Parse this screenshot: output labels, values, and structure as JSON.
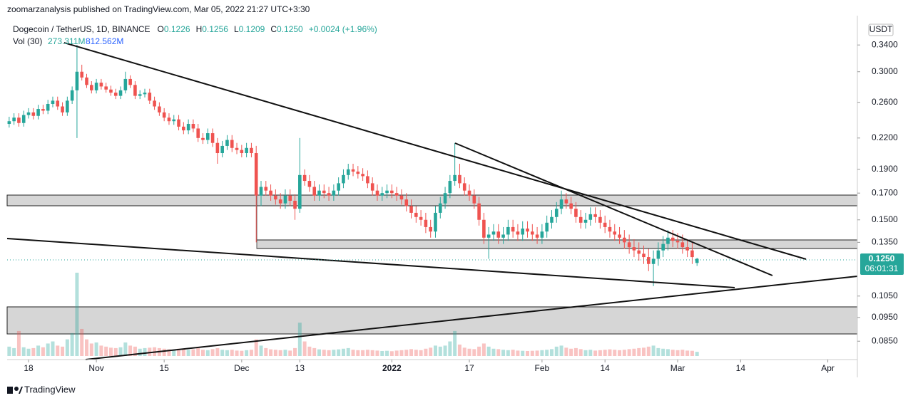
{
  "chart_data": {
    "type": "candlestick",
    "published": "zoomarzanalysis published on TradingView.com, Mar 05, 2022 21:27 UTC+3:30",
    "symbol": "Dogecoin / TetherUS, 1D, BINANCE",
    "ohlc_legend": [
      {
        "key": "O",
        "value": "0.1226"
      },
      {
        "key": "H",
        "value": "0.1256"
      },
      {
        "key": "L",
        "value": "0.1209"
      },
      {
        "key": "C",
        "value": "0.1250"
      }
    ],
    "change": "+0.0024 (+1.96%)",
    "volume_legend": {
      "name": "Vol (30)",
      "volume": "273.311M",
      "average": "812.562M"
    },
    "currency": "USDT",
    "last_price": "0.1250",
    "countdown": "06:01:31",
    "brand": "TradingView",
    "up_color": "#26a69a",
    "down_color": "#ef5350",
    "log_scale": true,
    "ylim": [
      0.078,
      0.39
    ],
    "yticks": [
      {
        "value": 0.34,
        "label": "0.3400"
      },
      {
        "value": 0.3,
        "label": "0.3000"
      },
      {
        "value": 0.26,
        "label": "0.2600"
      },
      {
        "value": 0.22,
        "label": "0.2200"
      },
      {
        "value": 0.19,
        "label": "0.1900"
      },
      {
        "value": 0.17,
        "label": "0.1700"
      },
      {
        "value": 0.15,
        "label": "0.1500"
      },
      {
        "value": 0.135,
        "label": "0.1350"
      },
      {
        "value": 0.105,
        "label": "0.1050"
      },
      {
        "value": 0.095,
        "label": "0.0950"
      },
      {
        "value": 0.085,
        "label": "0.0850"
      }
    ],
    "xlim": [
      -0.42,
      175.1
    ],
    "xticks": [
      {
        "value": 4,
        "label": "18"
      },
      {
        "value": 18,
        "label": "Nov"
      },
      {
        "value": 32,
        "label": "15"
      },
      {
        "value": 48,
        "label": "Dec"
      },
      {
        "value": 60,
        "label": "13"
      },
      {
        "value": 79,
        "label": "2022"
      },
      {
        "value": 95,
        "label": "17"
      },
      {
        "value": 110,
        "label": "Feb"
      },
      {
        "value": 123,
        "label": "14"
      },
      {
        "value": 138,
        "label": "Mar"
      },
      {
        "value": 151,
        "label": "14"
      },
      {
        "value": 169,
        "label": "Apr"
      }
    ],
    "open": [
      0.235,
      0.238,
      0.242,
      0.236,
      0.245,
      0.248,
      0.244,
      0.252,
      0.25,
      0.258,
      0.262,
      0.255,
      0.248,
      0.262,
      0.275,
      0.3,
      0.292,
      0.282,
      0.275,
      0.285,
      0.28,
      0.276,
      0.272,
      0.268,
      0.275,
      0.29,
      0.282,
      0.268,
      0.27,
      0.272,
      0.262,
      0.255,
      0.248,
      0.242,
      0.238,
      0.24,
      0.232,
      0.228,
      0.235,
      0.23,
      0.22,
      0.218,
      0.225,
      0.215,
      0.205,
      0.212,
      0.218,
      0.21,
      0.208,
      0.205,
      0.21,
      0.205,
      0.168,
      0.175,
      0.172,
      0.168,
      0.165,
      0.162,
      0.168,
      0.164,
      0.158,
      0.185,
      0.18,
      0.175,
      0.168,
      0.172,
      0.17,
      0.168,
      0.172,
      0.178,
      0.185,
      0.19,
      0.188,
      0.186,
      0.184,
      0.178,
      0.172,
      0.168,
      0.17,
      0.172,
      0.17,
      0.168,
      0.165,
      0.16,
      0.155,
      0.152,
      0.15,
      0.145,
      0.142,
      0.155,
      0.162,
      0.17,
      0.18,
      0.185,
      0.178,
      0.172,
      0.168,
      0.162,
      0.15,
      0.138,
      0.14,
      0.142,
      0.138,
      0.14,
      0.145,
      0.142,
      0.14,
      0.144,
      0.142,
      0.14,
      0.138,
      0.142,
      0.148,
      0.152,
      0.158,
      0.165,
      0.162,
      0.158,
      0.152,
      0.148,
      0.15,
      0.154,
      0.152,
      0.148,
      0.145,
      0.142,
      0.14,
      0.138,
      0.135,
      0.132,
      0.13,
      0.128,
      0.126,
      0.122,
      0.125,
      0.13,
      0.134,
      0.138,
      0.136,
      0.135,
      0.132,
      0.13,
      0.1226
    ],
    "high": [
      0.243,
      0.247,
      0.247,
      0.25,
      0.253,
      0.253,
      0.257,
      0.257,
      0.263,
      0.267,
      0.267,
      0.26,
      0.267,
      0.28,
      0.34,
      0.31,
      0.297,
      0.287,
      0.29,
      0.29,
      0.285,
      0.281,
      0.277,
      0.28,
      0.3,
      0.295,
      0.287,
      0.275,
      0.277,
      0.277,
      0.267,
      0.26,
      0.253,
      0.247,
      0.245,
      0.245,
      0.237,
      0.24,
      0.24,
      0.235,
      0.225,
      0.23,
      0.23,
      0.22,
      0.217,
      0.223,
      0.223,
      0.215,
      0.213,
      0.215,
      0.215,
      0.212,
      0.18,
      0.18,
      0.177,
      0.173,
      0.17,
      0.173,
      0.173,
      0.169,
      0.22,
      0.19,
      0.185,
      0.18,
      0.177,
      0.177,
      0.175,
      0.177,
      0.183,
      0.19,
      0.195,
      0.195,
      0.193,
      0.191,
      0.189,
      0.183,
      0.177,
      0.175,
      0.177,
      0.177,
      0.175,
      0.173,
      0.17,
      0.165,
      0.16,
      0.157,
      0.155,
      0.15,
      0.16,
      0.167,
      0.175,
      0.185,
      0.215,
      0.195,
      0.183,
      0.177,
      0.173,
      0.167,
      0.155,
      0.145,
      0.147,
      0.147,
      0.145,
      0.15,
      0.15,
      0.147,
      0.149,
      0.149,
      0.147,
      0.145,
      0.147,
      0.153,
      0.157,
      0.163,
      0.172,
      0.17,
      0.167,
      0.163,
      0.157,
      0.155,
      0.159,
      0.159,
      0.157,
      0.153,
      0.15,
      0.147,
      0.145,
      0.143,
      0.14,
      0.137,
      0.135,
      0.133,
      0.131,
      0.13,
      0.135,
      0.139,
      0.143,
      0.143,
      0.141,
      0.14,
      0.137,
      0.135,
      0.1256
    ],
    "low": [
      0.231,
      0.234,
      0.232,
      0.232,
      0.241,
      0.24,
      0.24,
      0.246,
      0.246,
      0.254,
      0.251,
      0.244,
      0.244,
      0.258,
      0.22,
      0.288,
      0.278,
      0.271,
      0.271,
      0.276,
      0.272,
      0.268,
      0.264,
      0.264,
      0.271,
      0.278,
      0.264,
      0.264,
      0.266,
      0.258,
      0.251,
      0.244,
      0.238,
      0.234,
      0.234,
      0.228,
      0.224,
      0.224,
      0.226,
      0.216,
      0.214,
      0.214,
      0.211,
      0.195,
      0.201,
      0.208,
      0.206,
      0.204,
      0.201,
      0.201,
      0.201,
      0.135,
      0.16,
      0.168,
      0.164,
      0.161,
      0.158,
      0.158,
      0.16,
      0.15,
      0.155,
      0.176,
      0.171,
      0.164,
      0.164,
      0.166,
      0.164,
      0.164,
      0.168,
      0.174,
      0.181,
      0.184,
      0.182,
      0.18,
      0.174,
      0.168,
      0.164,
      0.164,
      0.166,
      0.166,
      0.164,
      0.161,
      0.156,
      0.151,
      0.148,
      0.146,
      0.141,
      0.138,
      0.138,
      0.151,
      0.158,
      0.166,
      0.176,
      0.174,
      0.168,
      0.164,
      0.158,
      0.146,
      0.134,
      0.125,
      0.136,
      0.134,
      0.134,
      0.136,
      0.138,
      0.136,
      0.136,
      0.138,
      0.136,
      0.134,
      0.134,
      0.138,
      0.144,
      0.148,
      0.154,
      0.158,
      0.154,
      0.148,
      0.144,
      0.144,
      0.146,
      0.148,
      0.144,
      0.141,
      0.138,
      0.136,
      0.134,
      0.131,
      0.128,
      0.126,
      0.124,
      0.122,
      0.118,
      0.11,
      0.121,
      0.126,
      0.13,
      0.132,
      0.131,
      0.128,
      0.126,
      0.122,
      0.1209
    ],
    "close": [
      0.238,
      0.242,
      0.236,
      0.245,
      0.248,
      0.244,
      0.252,
      0.25,
      0.258,
      0.262,
      0.255,
      0.248,
      0.262,
      0.275,
      0.3,
      0.292,
      0.282,
      0.275,
      0.285,
      0.28,
      0.276,
      0.272,
      0.268,
      0.275,
      0.29,
      0.282,
      0.268,
      0.27,
      0.272,
      0.262,
      0.255,
      0.248,
      0.242,
      0.238,
      0.24,
      0.232,
      0.228,
      0.235,
      0.23,
      0.22,
      0.218,
      0.225,
      0.215,
      0.205,
      0.212,
      0.218,
      0.21,
      0.208,
      0.205,
      0.21,
      0.205,
      0.168,
      0.175,
      0.172,
      0.168,
      0.165,
      0.162,
      0.168,
      0.164,
      0.158,
      0.185,
      0.18,
      0.175,
      0.168,
      0.172,
      0.17,
      0.168,
      0.172,
      0.178,
      0.185,
      0.19,
      0.188,
      0.186,
      0.184,
      0.178,
      0.172,
      0.168,
      0.17,
      0.172,
      0.17,
      0.168,
      0.165,
      0.16,
      0.155,
      0.152,
      0.15,
      0.145,
      0.142,
      0.155,
      0.162,
      0.17,
      0.18,
      0.185,
      0.178,
      0.172,
      0.168,
      0.162,
      0.15,
      0.138,
      0.14,
      0.142,
      0.138,
      0.14,
      0.145,
      0.142,
      0.14,
      0.144,
      0.142,
      0.14,
      0.138,
      0.142,
      0.148,
      0.152,
      0.158,
      0.165,
      0.162,
      0.158,
      0.152,
      0.148,
      0.15,
      0.154,
      0.152,
      0.148,
      0.145,
      0.142,
      0.14,
      0.138,
      0.135,
      0.132,
      0.13,
      0.128,
      0.126,
      0.122,
      0.125,
      0.13,
      0.134,
      0.138,
      0.136,
      0.135,
      0.132,
      0.13,
      0.126,
      0.125
    ],
    "volume": [
      450,
      380,
      1200,
      420,
      350,
      380,
      500,
      420,
      600,
      700,
      500,
      450,
      800,
      1100,
      4000,
      1300,
      800,
      600,
      650,
      500,
      450,
      400,
      380,
      420,
      650,
      500,
      450,
      350,
      380,
      400,
      420,
      380,
      350,
      320,
      300,
      350,
      330,
      300,
      320,
      380,
      300,
      280,
      330,
      380,
      300,
      280,
      300,
      260,
      250,
      280,
      300,
      800,
      500,
      380,
      320,
      300,
      280,
      300,
      260,
      380,
      1600,
      700,
      450,
      380,
      320,
      300,
      280,
      300,
      320,
      350,
      380,
      300,
      280,
      280,
      300,
      280,
      260,
      240,
      250,
      230,
      260,
      280,
      300,
      330,
      300,
      280,
      350,
      400,
      500,
      450,
      500,
      700,
      1200,
      550,
      400,
      350,
      330,
      450,
      600,
      450,
      350,
      330,
      300,
      280,
      300,
      260,
      250,
      240,
      250,
      260,
      280,
      300,
      330,
      450,
      500,
      400,
      350,
      380,
      330,
      280,
      300,
      260,
      280,
      300,
      320,
      300,
      280,
      300,
      330,
      350,
      380,
      400,
      450,
      500,
      380,
      350,
      330,
      300,
      280,
      300,
      260,
      250,
      200
    ]
  }
}
